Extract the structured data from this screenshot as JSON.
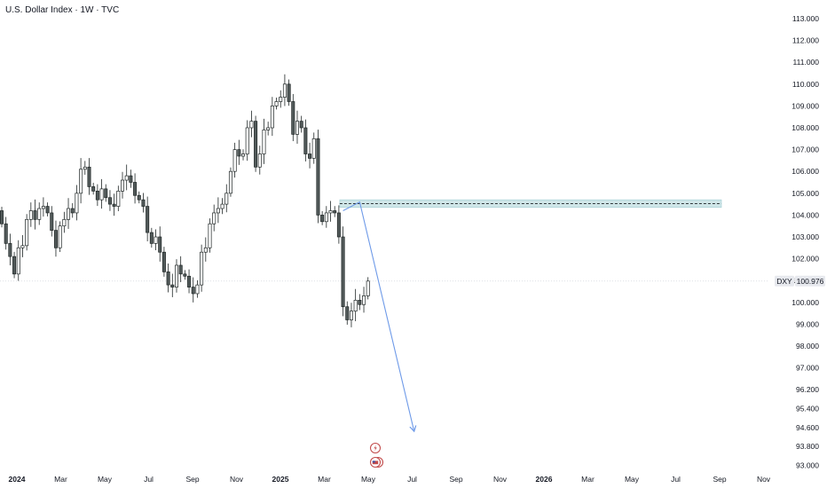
{
  "chart_data": {
    "type": "candlestick",
    "title": "U.S. Dollar Index · 1W · TVC",
    "symbol": "DXY",
    "last_price": "100.976",
    "price_ticks": [
      "113.000",
      "112.000",
      "111.000",
      "110.000",
      "109.000",
      "108.000",
      "107.000",
      "106.000",
      "105.000",
      "104.000",
      "103.000",
      "102.000",
      "101.000",
      "100.000",
      "99.000",
      "98.000",
      "97.000",
      "96.200",
      "95.400",
      "94.600",
      "93.800",
      "93.000"
    ],
    "time_ticks": [
      {
        "label": "2024",
        "bold": true
      },
      {
        "label": "Mar",
        "bold": false
      },
      {
        "label": "May",
        "bold": false
      },
      {
        "label": "Jul",
        "bold": false
      },
      {
        "label": "Sep",
        "bold": false
      },
      {
        "label": "Nov",
        "bold": false
      },
      {
        "label": "2025",
        "bold": true
      },
      {
        "label": "Mar",
        "bold": false
      },
      {
        "label": "May",
        "bold": false
      },
      {
        "label": "Jul",
        "bold": false
      },
      {
        "label": "Sep",
        "bold": false
      },
      {
        "label": "Nov",
        "bold": false
      },
      {
        "label": "2026",
        "bold": true
      },
      {
        "label": "Mar",
        "bold": false
      },
      {
        "label": "May",
        "bold": false
      },
      {
        "label": "Jul",
        "bold": false
      },
      {
        "label": "Sep",
        "bold": false
      },
      {
        "label": "Nov",
        "bold": false
      }
    ],
    "closes": [
      103.6,
      102.7,
      102.1,
      101.3,
      102.5,
      102.6,
      103.8,
      104.2,
      103.8,
      104.3,
      104.4,
      104.1,
      103.3,
      102.5,
      103.5,
      103.8,
      104.3,
      104.1,
      105.0,
      106.1,
      106.2,
      105.3,
      105.1,
      104.7,
      105.2,
      104.8,
      104.5,
      104.4,
      105.1,
      105.6,
      105.8,
      105.5,
      104.9,
      104.7,
      104.4,
      103.2,
      102.7,
      103.0,
      102.3,
      101.4,
      100.8,
      100.7,
      101.7,
      101.3,
      101.2,
      100.7,
      100.4,
      100.8,
      102.3,
      102.5,
      103.6,
      104.1,
      104.3,
      104.5,
      105.0,
      106.0,
      107.0,
      106.7,
      106.8,
      108.0,
      108.3,
      106.2,
      106.8,
      107.9,
      108.0,
      109.0,
      109.2,
      109.4,
      110.0,
      109.2,
      107.7,
      108.3,
      108.0,
      106.8,
      106.6,
      107.5,
      104.0,
      103.7,
      104.1,
      104.2,
      104.1,
      103.0,
      99.8,
      99.2,
      99.6,
      100.1,
      99.9,
      100.3,
      100.976
    ],
    "resistance_zone": {
      "low": 104.35,
      "high": 104.7
    },
    "projection": [
      {
        "week": 82,
        "price": 104.2
      },
      {
        "week": 86,
        "price": 104.6
      },
      {
        "week": 99,
        "price": 94.5
      }
    ],
    "colors": {
      "candle_body_down": "#525a5a",
      "candle_body_up": "#ffffff",
      "candle_border": "#1f2626",
      "zone_fill": "#cfe6e8",
      "zone_line": "#1b1f23",
      "projection": "#6e9ae8",
      "event_flag": "#c24c4c"
    }
  }
}
